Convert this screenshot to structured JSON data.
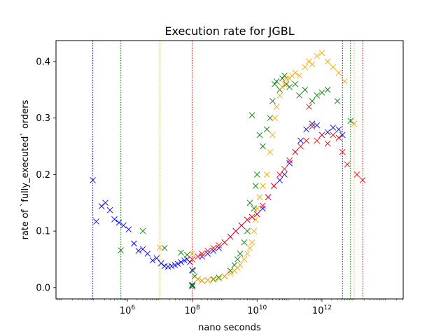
{
  "chart_data": {
    "type": "scatter",
    "title": "Execution rate for JGBL",
    "xlabel": "nano seconds",
    "ylabel": "rate of `fully_executed` orders",
    "x_scale": "log",
    "xlim": [
      6300.0,
      320000000000000.0
    ],
    "ylim": [
      -0.02,
      0.437
    ],
    "grid": false,
    "marker": "x",
    "x_ticks": [
      {
        "value": 1000000.0,
        "base": "10",
        "exp": "6"
      },
      {
        "value": 100000000.0,
        "base": "10",
        "exp": "8"
      },
      {
        "value": 10000000000.0,
        "base": "10",
        "exp": "10"
      },
      {
        "value": 1000000000000.0,
        "base": "10",
        "exp": "12"
      }
    ],
    "y_ticks": [
      {
        "value": 0.0,
        "label": "0.0"
      },
      {
        "value": 0.1,
        "label": "0.1"
      },
      {
        "value": 0.2,
        "label": "0.2"
      },
      {
        "value": 0.3,
        "label": "0.3"
      },
      {
        "value": 0.4,
        "label": "0.4"
      }
    ],
    "vlines": [
      {
        "x": 86000.0,
        "color": "#0000ff"
      },
      {
        "x": 630000.0,
        "color": "#008000"
      },
      {
        "x": 10000000.0,
        "color": "#ffa500"
      },
      {
        "x": 100000000.0,
        "color": "#ff0000"
      },
      {
        "x": 4300000000000.0,
        "color": "#0000ff"
      },
      {
        "x": 7600000000000.0,
        "color": "#008000"
      },
      {
        "x": 9800000000000.0,
        "color": "#ffa500"
      },
      {
        "x": 18000000000000.0,
        "color": "#ff0000"
      }
    ],
    "series": [
      {
        "color": "#0000ff",
        "x": [
          86000.0,
          110000.0,
          160000.0,
          210000.0,
          290000.0,
          400000.0,
          550000.0,
          760000.0,
          1100000.0,
          1600000.0,
          2200000.0,
          3000000.0,
          4200000.0,
          6000000.0,
          8000000.0,
          11000000.0,
          14000000.0,
          18000000.0,
          23000000.0,
          29000000.0,
          36000000.0,
          45000000.0,
          57000000.0,
          70000000.0,
          85000000.0,
          100000000.0,
          100000000.0,
          200000000.0,
          300000000.0,
          450000000.0,
          660000000.0,
          1000000000.0,
          1500000000.0,
          2200000000.0,
          3300000000.0,
          5000000000.0,
          7000000000.0,
          10000000000.0,
          15000000000.0,
          22000000000.0,
          33000000000.0,
          50000000000.0,
          70000000000.0,
          100000000000.0,
          150000000000.0,
          220000000000.0,
          330000000000.0,
          500000000000.0,
          700000000000.0,
          1000000000000.0,
          1500000000000.0,
          2200000000000.0,
          3300000000000.0,
          4300000000000.0
        ],
        "y": [
          0.19,
          0.117,
          0.144,
          0.15,
          0.137,
          0.121,
          0.115,
          0.11,
          0.103,
          0.078,
          0.065,
          0.068,
          0.06,
          0.048,
          0.052,
          0.043,
          0.038,
          0.037,
          0.038,
          0.04,
          0.042,
          0.045,
          0.048,
          0.05,
          0.045,
          0.031,
          0.004,
          0.055,
          0.06,
          0.065,
          0.07,
          0.08,
          0.09,
          0.1,
          0.11,
          0.12,
          0.125,
          0.13,
          0.14,
          0.16,
          0.18,
          0.19,
          0.2,
          0.22,
          0.24,
          0.26,
          0.28,
          0.29,
          0.287,
          0.27,
          0.275,
          0.283,
          0.28,
          0.27
        ]
      },
      {
        "color": "#008000",
        "x": [
          630000.0,
          3000000.0,
          14000000.0,
          45000000.0,
          70000000.0,
          100000000.0,
          100000000.0,
          105000000.0,
          120000000.0,
          150000000.0,
          200000000.0,
          300000000.0,
          450000000.0,
          660000000.0,
          1000000000.0,
          1500000000.0,
          2000000000.0,
          2500000000.0,
          3000000000.0,
          4000000000.0,
          5000000000.0,
          6000000000.0,
          7000000000.0,
          8000000000.0,
          9000000000.0,
          10000000000.0,
          12000000000.0,
          15000000000.0,
          20000000000.0,
          25000000000.0,
          30000000000.0,
          35000000000.0,
          40000000000.0,
          50000000000.0,
          60000000000.0,
          70000000000.0,
          80000000000.0,
          100000000000.0,
          150000000000.0,
          200000000000.0,
          300000000000.0,
          500000000000.0,
          700000000000.0,
          1000000000000.0,
          1500000000000.0,
          3000000000000.0,
          7600000000000.0
        ],
        "y": [
          0.066,
          0.1,
          0.07,
          0.062,
          0.058,
          0.005,
          0.002,
          0.03,
          0.02,
          0.015,
          0.012,
          0.013,
          0.015,
          0.018,
          0.02,
          0.03,
          0.04,
          0.05,
          0.06,
          0.08,
          0.1,
          0.15,
          0.305,
          0.14,
          0.18,
          0.2,
          0.27,
          0.25,
          0.28,
          0.3,
          0.33,
          0.36,
          0.365,
          0.35,
          0.37,
          0.375,
          0.36,
          0.355,
          0.36,
          0.34,
          0.35,
          0.33,
          0.34,
          0.345,
          0.35,
          0.33,
          0.295
        ]
      },
      {
        "color": "#ffa500",
        "x": [
          10000000.0,
          100000000.0,
          150000000.0,
          200000000.0,
          300000000.0,
          450000000.0,
          660000000.0,
          1000000000.0,
          1500000000.0,
          2000000000.0,
          2500000000.0,
          3000000000.0,
          4000000000.0,
          5000000000.0,
          6000000000.0,
          7000000000.0,
          8000000000.0,
          9000000000.0,
          10000000000.0,
          12000000000.0,
          15000000000.0,
          20000000000.0,
          25000000000.0,
          30000000000.0,
          35000000000.0,
          40000000000.0,
          50000000000.0,
          60000000000.0,
          70000000000.0,
          80000000000.0,
          100000000000.0,
          120000000000.0,
          150000000000.0,
          200000000000.0,
          300000000000.0,
          400000000000.0,
          500000000000.0,
          700000000000.0,
          1000000000000.0,
          1500000000000.0,
          2200000000000.0,
          3300000000000.0,
          5000000000000.0,
          9800000000000.0
        ],
        "y": [
          0.071,
          0.06,
          0.015,
          0.012,
          0.013,
          0.014,
          0.016,
          0.02,
          0.025,
          0.03,
          0.035,
          0.04,
          0.05,
          0.06,
          0.07,
          0.08,
          0.1,
          0.12,
          0.14,
          0.16,
          0.18,
          0.2,
          0.24,
          0.27,
          0.3,
          0.32,
          0.34,
          0.355,
          0.36,
          0.37,
          0.37,
          0.375,
          0.38,
          0.375,
          0.39,
          0.4,
          0.395,
          0.41,
          0.415,
          0.4,
          0.39,
          0.38,
          0.365,
          0.29
        ]
      },
      {
        "color": "#ff0000",
        "x": [
          100000000.0,
          150000000.0,
          200000000.0,
          300000000.0,
          450000000.0,
          660000000.0,
          1000000000.0,
          1500000000.0,
          2200000000.0,
          3300000000.0,
          5000000000.0,
          7000000000.0,
          10000000000.0,
          15000000000.0,
          22000000000.0,
          33000000000.0,
          50000000000.0,
          70000000000.0,
          100000000000.0,
          150000000000.0,
          220000000000.0,
          330000000000.0,
          400000000000.0,
          500000000000.0,
          700000000000.0,
          1000000000000.0,
          1500000000000.0,
          2200000000000.0,
          3300000000000.0,
          4300000000000.0,
          6000000000000.0,
          12000000000000.0,
          18000000000000.0
        ],
        "y": [
          0.05,
          0.055,
          0.06,
          0.065,
          0.07,
          0.075,
          0.08,
          0.09,
          0.1,
          0.11,
          0.12,
          0.125,
          0.13,
          0.145,
          0.16,
          0.18,
          0.2,
          0.21,
          0.225,
          0.24,
          0.25,
          0.26,
          0.32,
          0.285,
          0.26,
          0.27,
          0.255,
          0.27,
          0.265,
          0.24,
          0.218,
          0.2,
          0.19
        ]
      }
    ]
  }
}
